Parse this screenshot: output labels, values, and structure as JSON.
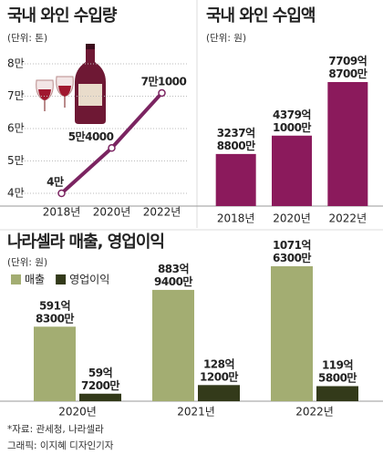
{
  "chart_data": [
    {
      "type": "line",
      "title": "국내 와인 수입량",
      "subtitle": "(단위: 톤)",
      "categories": [
        "2018년",
        "2020년",
        "2022년"
      ],
      "values": [
        40000,
        54000,
        71000
      ],
      "value_labels": [
        "4만",
        "5만4000",
        "7만1000"
      ],
      "color": "#7b2461",
      "ylim": [
        40000,
        80000
      ],
      "yticks": [
        {
          "value": 40000,
          "label": "4만"
        },
        {
          "value": 50000,
          "label": "5만"
        },
        {
          "value": 60000,
          "label": "6만"
        },
        {
          "value": 70000,
          "label": "7만"
        },
        {
          "value": 80000,
          "label": "8만"
        }
      ],
      "grid": true
    },
    {
      "type": "bar",
      "title": "국내 와인 수입액",
      "subtitle": "(단위: 원)",
      "categories": [
        "2018년",
        "2020년",
        "2022년"
      ],
      "values": [
        323788000000,
        437910000000,
        770987000000
      ],
      "value_labels": [
        "3237억 8800만",
        "4379억 1000만",
        "7709억 8700만"
      ],
      "color": "#8b1a5c"
    },
    {
      "type": "bar",
      "title": "나라셀라 매출, 영업이익",
      "subtitle": "(단위: 원)",
      "categories": [
        "2020년",
        "2021년",
        "2022년"
      ],
      "series": [
        {
          "name": "매출",
          "color": "#a3ad72",
          "values": [
            59183000000,
            88394000000,
            107163000000
          ],
          "value_labels": [
            "591억 8300만",
            "883억 9400만",
            "1071억 6300만"
          ]
        },
        {
          "name": "영업이익",
          "color": "#333a1a",
          "values": [
            5972000000,
            12812000000,
            11958000000
          ],
          "value_labels": [
            "59억 7200만",
            "128억 1200만",
            "119억 5800만"
          ]
        }
      ],
      "legend": "top-left"
    }
  ],
  "source": "*자료: 관세청, 나라셀라",
  "credit": "그래픽: 이지혜 디자인기자"
}
